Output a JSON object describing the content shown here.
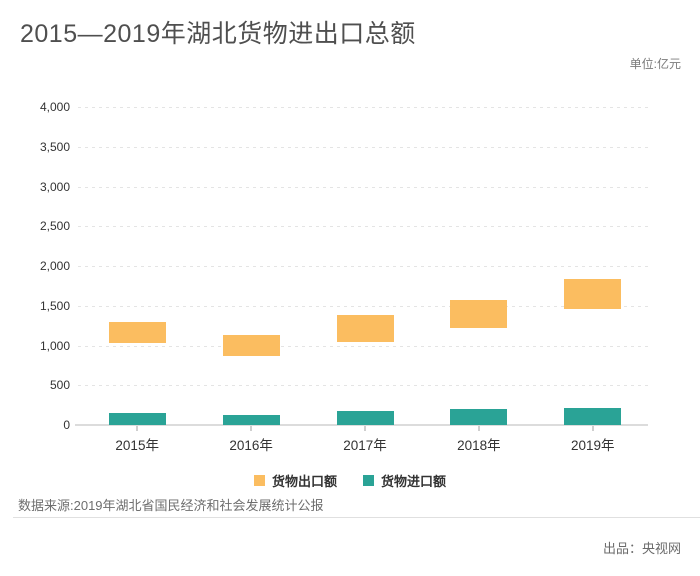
{
  "page": {
    "title": "2015—2019年湖北货物进出口总额",
    "unit_label": "单位:亿元",
    "source": "数据来源:2019年湖北省国民经济和社会发展统计公报",
    "producer": "出品：央视网"
  },
  "chart_data": {
    "type": "bar",
    "title": "2015—2019年湖北货物进出口总额",
    "unit": "亿元",
    "categories": [
      "2015年",
      "2016年",
      "2017年",
      "2018年",
      "2019年"
    ],
    "series": [
      {
        "name": "货物出口额",
        "color": "#FBBD60",
        "style": "floating-range-column",
        "ranges": [
          [
            1030,
            1300
          ],
          [
            865,
            1135
          ],
          [
            1050,
            1385
          ],
          [
            1225,
            1570
          ],
          [
            1465,
            1835
          ]
        ]
      },
      {
        "name": "货物进口额",
        "color": "#2AA396",
        "style": "column",
        "values": [
          145,
          130,
          170,
          195,
          220
        ]
      }
    ],
    "y_axis": {
      "min": 0,
      "max": 4000,
      "tick_step": 500,
      "tick_values": [
        0,
        500,
        1000,
        1500,
        2000,
        2500,
        3000,
        3500,
        4000
      ],
      "tick_labels": [
        "0",
        "500",
        "1,000",
        "1,500",
        "2,000",
        "2,500",
        "3,000",
        "3,500",
        "4,000"
      ],
      "grid": "dotted"
    },
    "legend_position": "bottom"
  }
}
